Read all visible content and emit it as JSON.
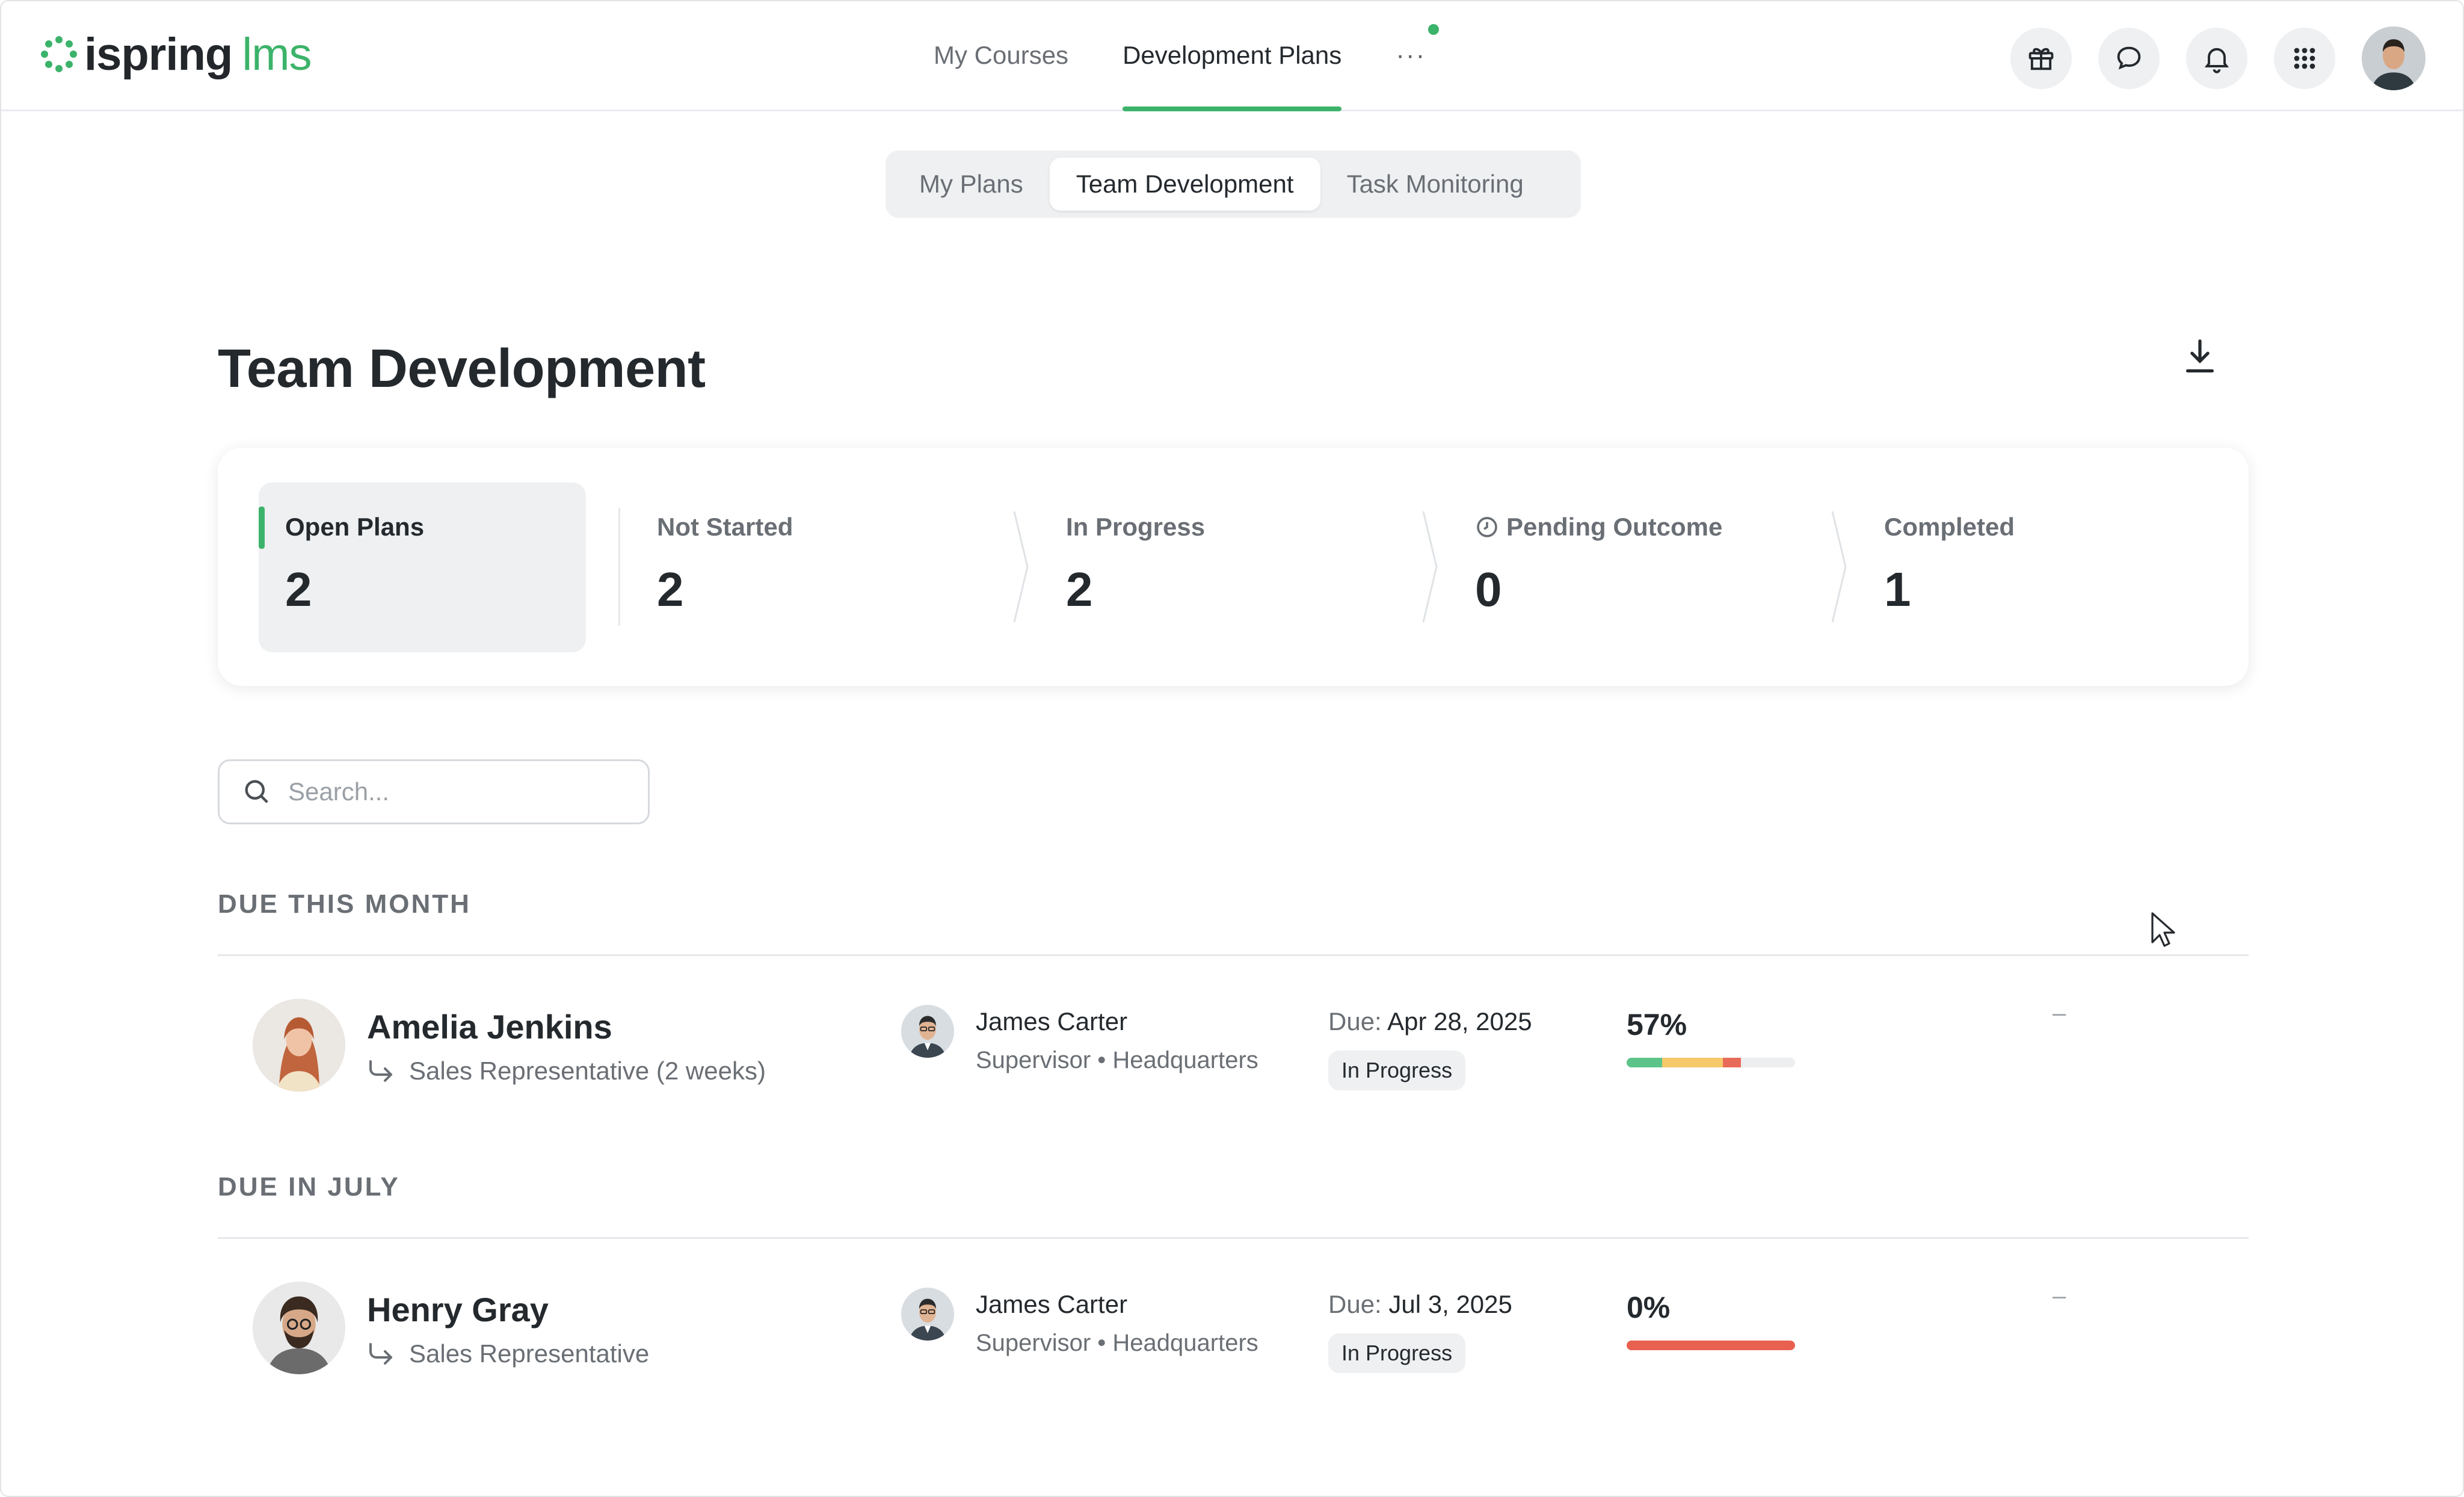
{
  "brand": {
    "name_part1": "ispring",
    "name_part2": "lms",
    "accent": "#3cb36a"
  },
  "topnav": {
    "tabs": [
      {
        "label": "My Courses",
        "active": false
      },
      {
        "label": "Development Plans",
        "active": true
      }
    ],
    "more_label": "···",
    "icons": [
      "gift-icon",
      "chat-icon",
      "bell-icon",
      "apps-grid-icon"
    ]
  },
  "subtabs": [
    {
      "label": "My Plans",
      "active": false
    },
    {
      "label": "Team Development",
      "active": true
    },
    {
      "label": "Task Monitoring",
      "active": false
    }
  ],
  "page": {
    "title": "Team Development",
    "download_icon": "download-icon"
  },
  "stats": [
    {
      "label": "Open Plans",
      "value": "2"
    },
    {
      "label": "Not Started",
      "value": "2"
    },
    {
      "label": "In Progress",
      "value": "2"
    },
    {
      "label": "Pending Outcome",
      "value": "0",
      "icon": "clock-icon"
    },
    {
      "label": "Completed",
      "value": "1"
    }
  ],
  "search": {
    "placeholder": "Search..."
  },
  "groups": [
    {
      "heading": "DUE THIS MONTH",
      "rows": [
        {
          "name": "Amelia Jenkins",
          "role": "Sales Representative (2 weeks)",
          "supervisor_name": "James Carter",
          "supervisor_desc": "Supervisor • Headquarters",
          "due_key": "Due:",
          "due_date": "Apr 28, 2025",
          "status": "In Progress",
          "percent": "57%",
          "progress_segments": [
            {
              "fraction": 0.21,
              "color": "#5cc48a"
            },
            {
              "fraction": 0.36,
              "color": "#f6c96a"
            },
            {
              "fraction": 0.11,
              "color": "#e86b5a"
            }
          ],
          "extra": "–"
        }
      ]
    },
    {
      "heading": "DUE IN JULY",
      "rows": [
        {
          "name": "Henry Gray",
          "role": "Sales Representative",
          "supervisor_name": "James Carter",
          "supervisor_desc": "Supervisor • Headquarters",
          "due_key": "Due:",
          "due_date": "Jul 3, 2025",
          "status": "In Progress",
          "percent": "0%",
          "progress_segments": [
            {
              "fraction": 1.0,
              "color": "#e8604f"
            }
          ],
          "extra": "–"
        }
      ]
    }
  ]
}
